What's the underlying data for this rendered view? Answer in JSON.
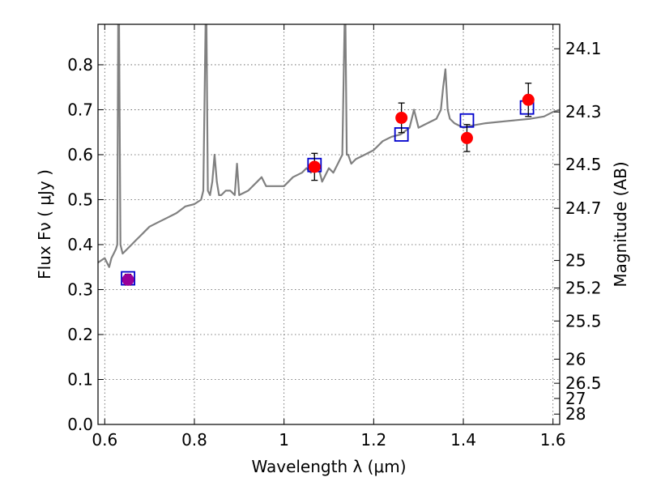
{
  "chart_data": {
    "type": "scatter",
    "xlabel": "Wavelength  λ (μm)",
    "ylabel": "Flux  Fν  ( μJy )",
    "ylabel_right": "Magnitude (AB)",
    "xlim": [
      0.585,
      1.615
    ],
    "ylim": [
      0.0,
      0.89
    ],
    "grid": true,
    "x_ticks": [
      {
        "value": 0.6,
        "label": "0.6"
      },
      {
        "value": 0.8,
        "label": "0.8"
      },
      {
        "value": 1.0,
        "label": "1"
      },
      {
        "value": 1.2,
        "label": "1.2"
      },
      {
        "value": 1.4,
        "label": "1.4"
      },
      {
        "value": 1.6,
        "label": "1.6"
      }
    ],
    "y_ticks": [
      {
        "value": 0.0,
        "label": "0.0"
      },
      {
        "value": 0.1,
        "label": "0.1"
      },
      {
        "value": 0.2,
        "label": "0.2"
      },
      {
        "value": 0.3,
        "label": "0.3"
      },
      {
        "value": 0.4,
        "label": "0.4"
      },
      {
        "value": 0.5,
        "label": "0.5"
      },
      {
        "value": 0.6,
        "label": "0.6"
      },
      {
        "value": 0.7,
        "label": "0.7"
      },
      {
        "value": 0.8,
        "label": "0.8"
      }
    ],
    "mag_ticks": [
      {
        "label": "24.1",
        "flux": 0.8356
      },
      {
        "label": "24.3",
        "flux": 0.695
      },
      {
        "label": "24.5",
        "flux": 0.5781
      },
      {
        "label": "24.7",
        "flux": 0.4808
      },
      {
        "label": "25",
        "flux": 0.3647
      },
      {
        "label": "25.2",
        "flux": 0.3034
      },
      {
        "label": "25.5",
        "flux": 0.2301
      },
      {
        "label": "26",
        "flux": 0.1452
      },
      {
        "label": "26.5",
        "flux": 0.0916
      },
      {
        "label": "27",
        "flux": 0.0578
      },
      {
        "label": "28",
        "flux": 0.023
      }
    ],
    "series": [
      {
        "kind": "line",
        "color": "#808080",
        "x": [
          0.585,
          0.6,
          0.61,
          0.615,
          0.62,
          0.625,
          0.628,
          0.63,
          0.632,
          0.635,
          0.64,
          0.65,
          0.66,
          0.67,
          0.68,
          0.69,
          0.7,
          0.72,
          0.74,
          0.76,
          0.78,
          0.8,
          0.815,
          0.82,
          0.825,
          0.827,
          0.83,
          0.835,
          0.84,
          0.845,
          0.85,
          0.855,
          0.86,
          0.87,
          0.88,
          0.89,
          0.895,
          0.9,
          0.92,
          0.94,
          0.95,
          0.96,
          0.98,
          1.0,
          1.02,
          1.04,
          1.05,
          1.06,
          1.07,
          1.08,
          1.085,
          1.09,
          1.1,
          1.11,
          1.12,
          1.13,
          1.135,
          1.137,
          1.14,
          1.143,
          1.15,
          1.16,
          1.18,
          1.2,
          1.22,
          1.24,
          1.26,
          1.28,
          1.29,
          1.3,
          1.31,
          1.32,
          1.34,
          1.35,
          1.355,
          1.36,
          1.365,
          1.37,
          1.38,
          1.4,
          1.42,
          1.45,
          1.5,
          1.55,
          1.58,
          1.6,
          1.615
        ],
        "y": [
          0.36,
          0.37,
          0.35,
          0.37,
          0.38,
          0.39,
          0.4,
          0.89,
          0.89,
          0.4,
          0.38,
          0.39,
          0.4,
          0.41,
          0.42,
          0.43,
          0.44,
          0.45,
          0.46,
          0.47,
          0.485,
          0.49,
          0.5,
          0.52,
          0.89,
          0.89,
          0.52,
          0.51,
          0.54,
          0.6,
          0.54,
          0.51,
          0.51,
          0.52,
          0.52,
          0.51,
          0.58,
          0.51,
          0.52,
          0.54,
          0.55,
          0.53,
          0.53,
          0.53,
          0.55,
          0.56,
          0.57,
          0.56,
          0.58,
          0.56,
          0.54,
          0.55,
          0.57,
          0.56,
          0.58,
          0.6,
          0.89,
          0.89,
          0.6,
          0.6,
          0.58,
          0.59,
          0.6,
          0.61,
          0.63,
          0.64,
          0.645,
          0.66,
          0.7,
          0.66,
          0.665,
          0.67,
          0.68,
          0.7,
          0.75,
          0.79,
          0.7,
          0.68,
          0.67,
          0.66,
          0.665,
          0.67,
          0.675,
          0.68,
          0.685,
          0.695,
          0.7
        ]
      },
      {
        "kind": "square",
        "color": "#0000cc",
        "x": [
          0.652,
          1.068,
          1.262,
          1.408,
          1.542
        ],
        "y": [
          0.325,
          0.577,
          0.645,
          0.676,
          0.705
        ]
      },
      {
        "kind": "circle",
        "color": "#ff0000",
        "x": [
          1.068,
          1.262,
          1.408,
          1.545
        ],
        "y": [
          0.573,
          0.682,
          0.637,
          0.722
        ],
        "err": [
          0.03,
          0.033,
          0.03,
          0.037
        ]
      },
      {
        "kind": "circle",
        "color": "#990099",
        "x": [
          0.652
        ],
        "y": [
          0.322
        ],
        "err": [
          0.012
        ]
      }
    ]
  }
}
